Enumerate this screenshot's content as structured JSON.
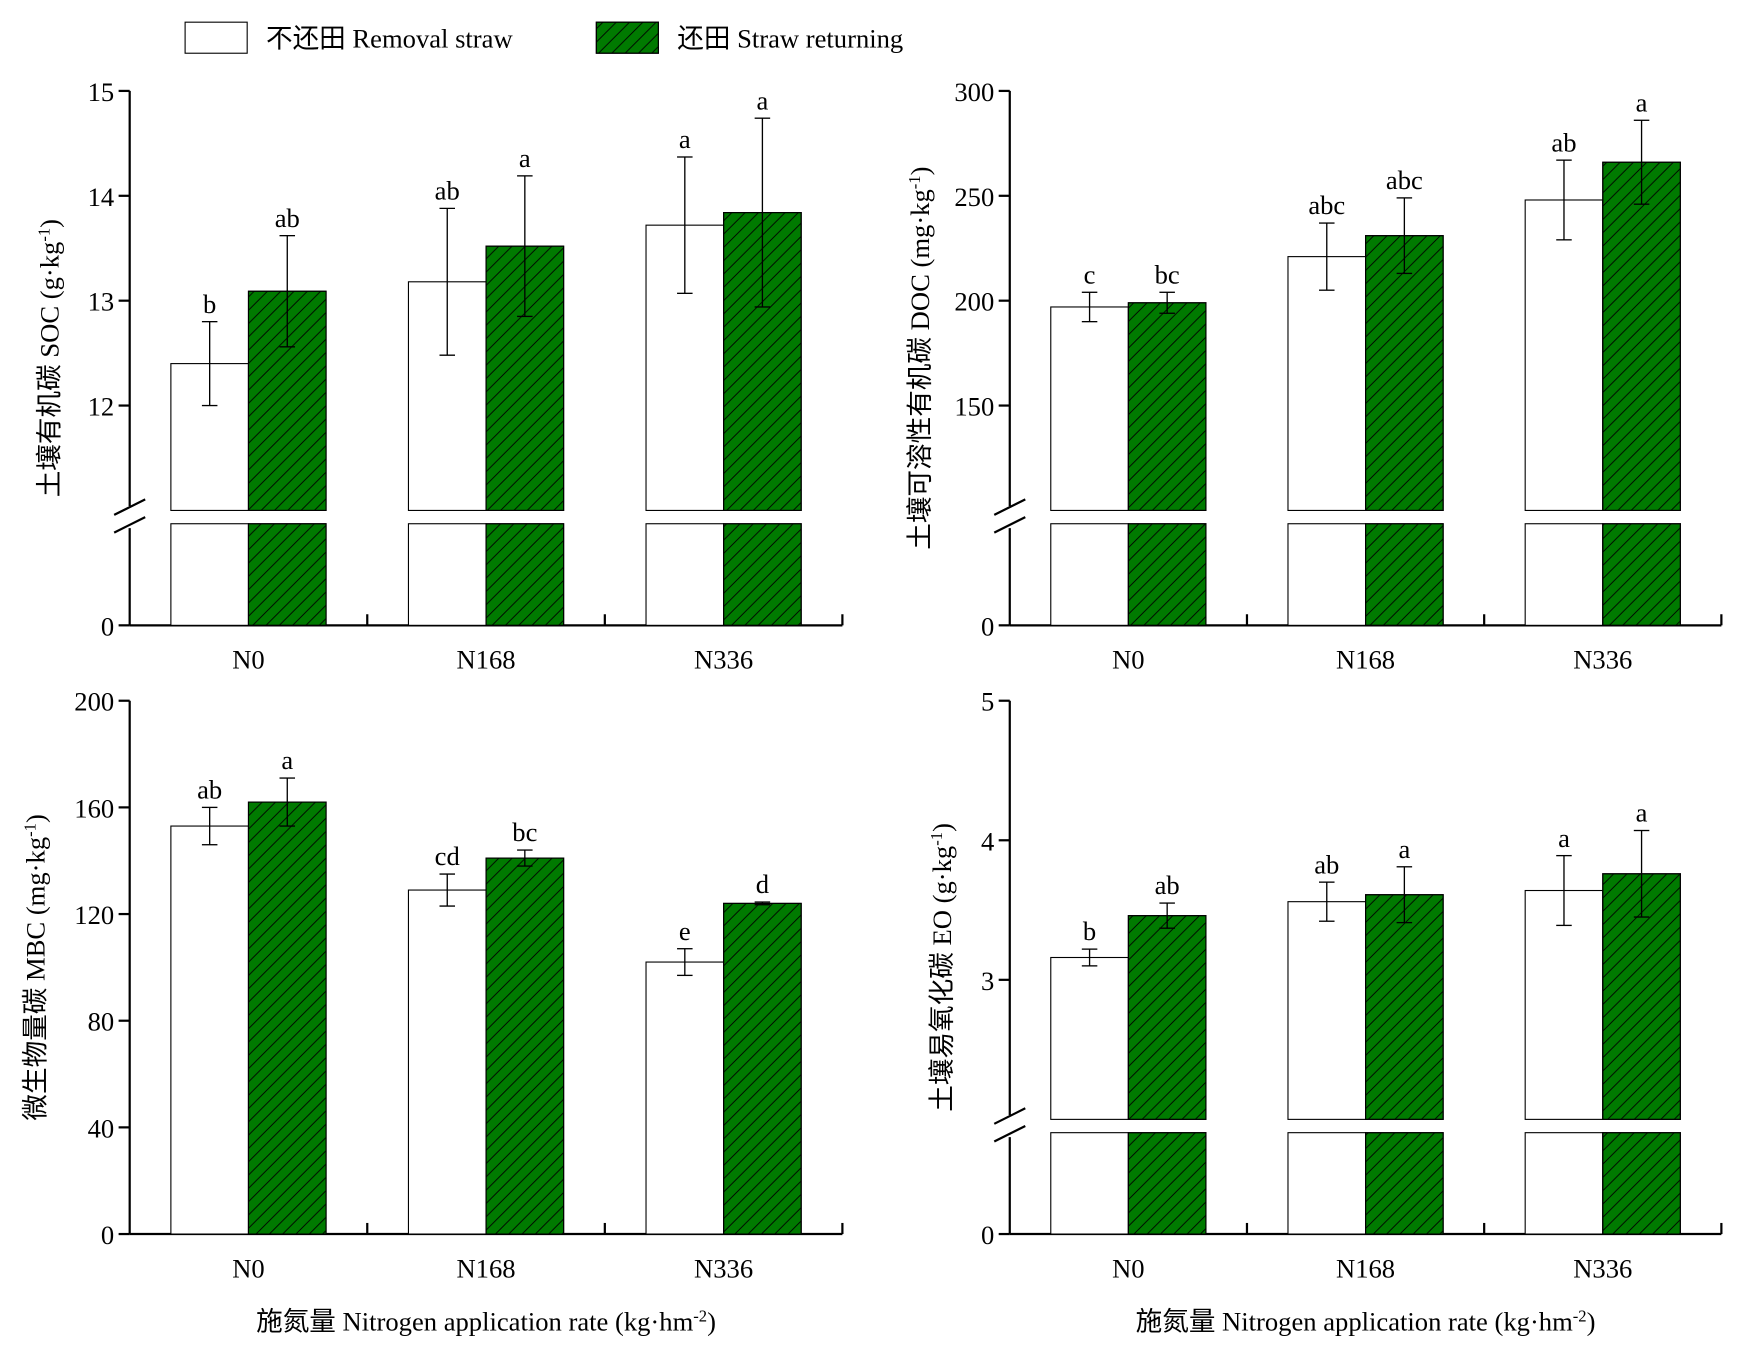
{
  "legend_position": "top",
  "chart_data": [
    {
      "type": "bar",
      "ylabel": [
        "土壤有机碳 SOC (g·kg",
        "-1",
        ")"
      ],
      "categories": [
        "N0",
        "N168",
        "N336"
      ],
      "ylim": [
        0,
        15
      ],
      "ybreak": 11,
      "yticks": [
        0,
        12,
        13,
        14,
        15
      ],
      "series": [
        {
          "name": "不还田 Removal straw",
          "color": "#ffffff",
          "hatch": false,
          "values": [
            12.4,
            13.18,
            13.72
          ],
          "errors": [
            0.4,
            0.7,
            0.65
          ],
          "annotations": [
            "b",
            "ab",
            "a"
          ]
        },
        {
          "name": "还田 Straw returning",
          "color": "#007a00",
          "hatch": true,
          "values": [
            13.09,
            13.52,
            13.84
          ],
          "errors": [
            0.53,
            0.67,
            0.9
          ],
          "annotations": [
            "ab",
            "a",
            "a"
          ]
        }
      ]
    },
    {
      "type": "bar",
      "ylabel": [
        "土壤可溶性有机碳 DOC (mg·kg",
        "-1",
        ")"
      ],
      "categories": [
        "N0",
        "N168",
        "N336"
      ],
      "ylim": [
        0,
        300
      ],
      "ybreak": 100,
      "yticks": [
        0,
        150,
        200,
        250,
        300
      ],
      "series": [
        {
          "color": "#ffffff",
          "hatch": false,
          "values": [
            197,
            221,
            248
          ],
          "errors": [
            7,
            16,
            19
          ],
          "annotations": [
            "c",
            "abc",
            "ab"
          ]
        },
        {
          "color": "#007a00",
          "hatch": true,
          "values": [
            199,
            231,
            266
          ],
          "errors": [
            5,
            18,
            20
          ],
          "annotations": [
            "bc",
            "abc",
            "a"
          ]
        }
      ]
    },
    {
      "type": "bar",
      "ylabel": [
        "微生物量碳 MBC (mg·kg",
        "-1",
        ")"
      ],
      "xlabel": [
        "施氮量 Nitrogen application rate (kg·hm",
        "-2",
        ")"
      ],
      "categories": [
        "N0",
        "N168",
        "N336"
      ],
      "ylim": [
        0,
        200
      ],
      "yticks": [
        0,
        40,
        80,
        120,
        160,
        200
      ],
      "series": [
        {
          "color": "#ffffff",
          "hatch": false,
          "values": [
            153,
            129,
            102
          ],
          "errors": [
            7,
            6,
            5
          ],
          "annotations": [
            "ab",
            "cd",
            "e"
          ]
        },
        {
          "color": "#007a00",
          "hatch": true,
          "values": [
            162,
            141,
            124
          ],
          "errors": [
            9,
            3,
            0.5
          ],
          "annotations": [
            "a",
            "bc",
            "d"
          ]
        }
      ]
    },
    {
      "type": "bar",
      "ylabel": [
        "土壤易氧化碳 EO (g·kg",
        "-1",
        ")"
      ],
      "xlabel": [
        "施氮量 Nitrogen application rate (kg·hm",
        "-2",
        ")"
      ],
      "categories": [
        "N0",
        "N168",
        "N336"
      ],
      "ylim": [
        0,
        5
      ],
      "ybreak": 2,
      "yticks": [
        0,
        3,
        4,
        5
      ],
      "series": [
        {
          "color": "#ffffff",
          "hatch": false,
          "values": [
            3.16,
            3.56,
            3.64
          ],
          "errors": [
            0.06,
            0.14,
            0.25
          ],
          "annotations": [
            "b",
            "ab",
            "a"
          ]
        },
        {
          "color": "#007a00",
          "hatch": true,
          "values": [
            3.46,
            3.61,
            3.76
          ],
          "errors": [
            0.09,
            0.2,
            0.31
          ],
          "annotations": [
            "ab",
            "a",
            "a"
          ]
        }
      ]
    }
  ]
}
